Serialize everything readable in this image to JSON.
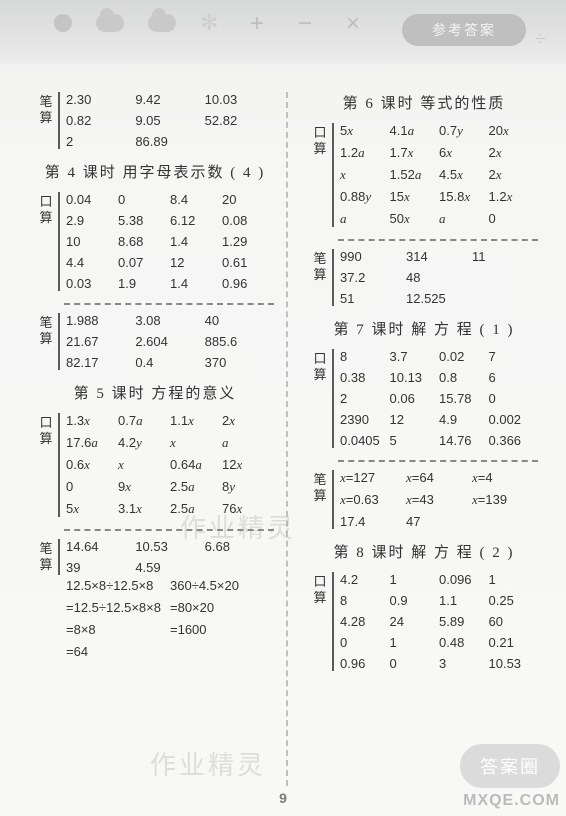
{
  "topbar": {
    "pill_label": "参考答案",
    "ops": [
      "+",
      "−",
      "×",
      "÷"
    ]
  },
  "page_number": "9",
  "watermarks": {
    "w1": "作业精灵",
    "w2": "作业精灵",
    "badge": "答案圈",
    "site": "MXQE.COM"
  },
  "left": {
    "bisuan1": {
      "label1": "笔",
      "label2": "算",
      "rows": [
        [
          "2.30",
          "9.42",
          "10.03"
        ],
        [
          "0.82",
          "9.05",
          "52.82"
        ],
        [
          "2",
          "86.89",
          ""
        ]
      ]
    },
    "h4": "第 4 课时  用字母表示数 ( 4 )",
    "kou4": {
      "label1": "口",
      "label2": "算",
      "rows": [
        [
          "0.04",
          "0",
          "8.4",
          "20"
        ],
        [
          "2.9",
          "5.38",
          "6.12",
          "0.08"
        ],
        [
          "10",
          "8.68",
          "1.4",
          "1.29"
        ],
        [
          "4.4",
          "0.07",
          "12",
          "0.61"
        ],
        [
          "0.03",
          "1.9",
          "1.4",
          "0.96"
        ]
      ]
    },
    "bi4": {
      "label1": "笔",
      "label2": "算",
      "rows": [
        [
          "1.988",
          "3.08",
          "40"
        ],
        [
          "21.67",
          "2.604",
          "885.6"
        ],
        [
          "82.17",
          "0.4",
          "370"
        ]
      ]
    },
    "h5": "第 5 课时  方程的意义",
    "kou5": {
      "label1": "口",
      "label2": "算",
      "rows": [
        [
          "1.3x",
          "0.7a",
          "1.1x",
          "2x"
        ],
        [
          "17.6a",
          "4.2y",
          "x",
          "a"
        ],
        [
          "0.6x",
          "x",
          "0.64a",
          "12x"
        ],
        [
          "0",
          "9x",
          "2.5a",
          "8y"
        ],
        [
          "5x",
          "3.1x",
          "2.5a",
          "76x"
        ]
      ]
    },
    "bi5": {
      "label1": "笔",
      "label2": "算",
      "rows": [
        [
          "14.64",
          "10.53",
          "6.68"
        ],
        [
          "39",
          "4.59",
          ""
        ]
      ]
    },
    "calc5": {
      "l1a": "12.5×8÷12.5×8",
      "l1b": "360÷4.5×20",
      "l2a": "=12.5÷12.5×8×8",
      "l2b": "=80×20",
      "l3a": "=8×8",
      "l3b": "=1600",
      "l4a": "=64",
      "l4b": ""
    }
  },
  "right": {
    "h6": "第 6 课时  等式的性质",
    "kou6": {
      "label1": "口",
      "label2": "算",
      "rows": [
        [
          "5x",
          "4.1a",
          "0.7y",
          "20x"
        ],
        [
          "1.2a",
          "1.7x",
          "6x",
          "2x"
        ],
        [
          "x",
          "1.52a",
          "4.5x",
          "2x"
        ],
        [
          "0.88y",
          "15x",
          "15.8x",
          "1.2x"
        ],
        [
          "a",
          "50x",
          "a",
          "0"
        ]
      ]
    },
    "bi6": {
      "label1": "笔",
      "label2": "算",
      "rows": [
        [
          "990",
          "314",
          "11"
        ],
        [
          "37.2",
          "48",
          ""
        ],
        [
          "51",
          "12.525",
          ""
        ]
      ]
    },
    "h7": "第 7 课时  解 方 程  ( 1 )",
    "kou7": {
      "label1": "口",
      "label2": "算",
      "rows": [
        [
          "8",
          "3.7",
          "0.02",
          "7"
        ],
        [
          "0.38",
          "10.13",
          "0.8",
          "6"
        ],
        [
          "2",
          "0.06",
          "15.78",
          "0"
        ],
        [
          "2390",
          "12",
          "4.9",
          "0.002"
        ],
        [
          "0.0405",
          "5",
          "14.76",
          "0.366"
        ]
      ]
    },
    "bi7": {
      "label1": "笔",
      "label2": "算",
      "rows": [
        [
          "x=127",
          "x=64",
          "x=4"
        ],
        [
          "x=0.63",
          "x=43",
          "x=139"
        ],
        [
          "17.4",
          "47",
          ""
        ]
      ]
    },
    "h8": "第 8 课时  解 方 程  ( 2 )",
    "kou8": {
      "label1": "口",
      "label2": "算",
      "rows": [
        [
          "4.2",
          "1",
          "0.096",
          "1"
        ],
        [
          "8",
          "0.9",
          "1.1",
          "0.25"
        ],
        [
          "4.28",
          "24",
          "5.89",
          "60"
        ],
        [
          "0",
          "1",
          "0.48",
          "0.21"
        ],
        [
          "0.96",
          "0",
          "3",
          "10.53"
        ]
      ]
    }
  }
}
